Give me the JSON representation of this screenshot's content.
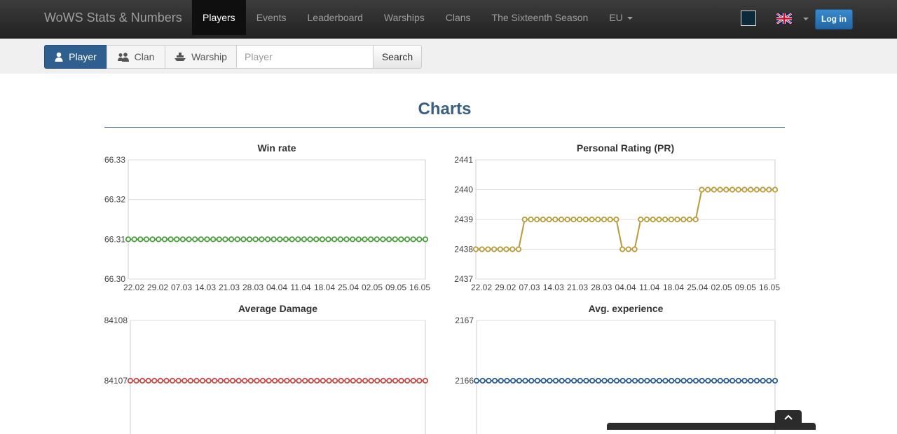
{
  "navbar": {
    "brand": "WoWS Stats & Numbers",
    "items": [
      {
        "label": "Players",
        "active": true
      },
      {
        "label": "Events"
      },
      {
        "label": "Leaderboard"
      },
      {
        "label": "Warships"
      },
      {
        "label": "Clans"
      },
      {
        "label": "The Sixteenth Season"
      },
      {
        "label": "EU",
        "dropdown": true
      }
    ],
    "theme_swatch_color": "#0d2a3a",
    "language_icon": "uk-flag-icon",
    "login_label": "Log in"
  },
  "search": {
    "tabs": [
      {
        "label": "Player",
        "icon": "user-icon",
        "active": true
      },
      {
        "label": "Clan",
        "icon": "users-icon"
      },
      {
        "label": "Warship",
        "icon": "ship-icon"
      }
    ],
    "placeholder": "Player",
    "button_label": "Search"
  },
  "section_title": "Charts",
  "chart_data": [
    {
      "type": "line",
      "title": "Win rate",
      "color": "#4aa03c",
      "yticks": [
        "66.33",
        "66.32",
        "66.31",
        "66.30"
      ],
      "ylim": [
        66.3,
        66.33
      ],
      "xticks": [
        "22.02",
        "29.02",
        "07.03",
        "14.03",
        "21.03",
        "28.03",
        "04.04",
        "11.04",
        "18.04",
        "25.04",
        "02.05",
        "09.05",
        "16.05"
      ],
      "series": [
        {
          "values": [
            66.31,
            66.31,
            66.31,
            66.31,
            66.31,
            66.31,
            66.31,
            66.31,
            66.31,
            66.31,
            66.31,
            66.31,
            66.31,
            66.31,
            66.31,
            66.31,
            66.31,
            66.31,
            66.31,
            66.31,
            66.31,
            66.31,
            66.31,
            66.31,
            66.31,
            66.31,
            66.31,
            66.31,
            66.31,
            66.31,
            66.31,
            66.31,
            66.31,
            66.31,
            66.31,
            66.31,
            66.31,
            66.31,
            66.31,
            66.31,
            66.31,
            66.31,
            66.31,
            66.31,
            66.31,
            66.31,
            66.31,
            66.31,
            66.31,
            66.31
          ]
        }
      ]
    },
    {
      "type": "line",
      "title": "Personal Rating (PR)",
      "color": "#b89b3a",
      "yticks": [
        "2441",
        "2440",
        "2439",
        "2438",
        "2437"
      ],
      "ylim": [
        2437,
        2441
      ],
      "xticks": [
        "22.02",
        "29.02",
        "07.03",
        "14.03",
        "21.03",
        "28.03",
        "04.04",
        "11.04",
        "18.04",
        "25.04",
        "02.05",
        "09.05",
        "16.05"
      ],
      "series": [
        {
          "values": [
            2438,
            2438,
            2438,
            2438,
            2438,
            2438,
            2438,
            2438,
            2439,
            2439,
            2439,
            2439,
            2439,
            2439,
            2439,
            2439,
            2439,
            2439,
            2439,
            2439,
            2439,
            2439,
            2439,
            2439,
            2438,
            2438,
            2438,
            2439,
            2439,
            2439,
            2439,
            2439,
            2439,
            2439,
            2439,
            2439,
            2439,
            2440,
            2440,
            2440,
            2440,
            2440,
            2440,
            2440,
            2440,
            2440,
            2440,
            2440,
            2440,
            2440
          ]
        }
      ]
    },
    {
      "type": "line",
      "title": "Average Damage",
      "color": "#c94a4a",
      "yticks": [
        "84108",
        "84107"
      ],
      "ylim": [
        84106,
        84108
      ],
      "xticks": [],
      "series": [
        {
          "values": [
            84107,
            84107,
            84107,
            84107,
            84107,
            84107,
            84107,
            84107,
            84107,
            84107,
            84107,
            84107,
            84107,
            84107,
            84107,
            84107,
            84107,
            84107,
            84107,
            84107,
            84107,
            84107,
            84107,
            84107,
            84107,
            84107,
            84107,
            84107,
            84107,
            84107,
            84107,
            84107,
            84107,
            84107,
            84107,
            84107,
            84107,
            84107,
            84107,
            84107,
            84107,
            84107,
            84107,
            84107,
            84107,
            84107,
            84107,
            84107,
            84107,
            84107
          ]
        }
      ]
    },
    {
      "type": "line",
      "title": "Avg. experience",
      "color": "#2b5d95",
      "yticks": [
        "2167",
        "2166"
      ],
      "ylim": [
        2165,
        2167
      ],
      "xticks": [],
      "series": [
        {
          "values": [
            2166,
            2166,
            2166,
            2166,
            2166,
            2166,
            2166,
            2166,
            2166,
            2166,
            2166,
            2166,
            2166,
            2166,
            2166,
            2166,
            2166,
            2166,
            2166,
            2166,
            2166,
            2166,
            2166,
            2166,
            2166,
            2166,
            2166,
            2166,
            2166,
            2166,
            2166,
            2166,
            2166,
            2166,
            2166,
            2166,
            2166,
            2166,
            2166,
            2166,
            2166,
            2166,
            2166,
            2166,
            2166,
            2166,
            2166,
            2166,
            2166,
            2166
          ]
        }
      ]
    }
  ]
}
